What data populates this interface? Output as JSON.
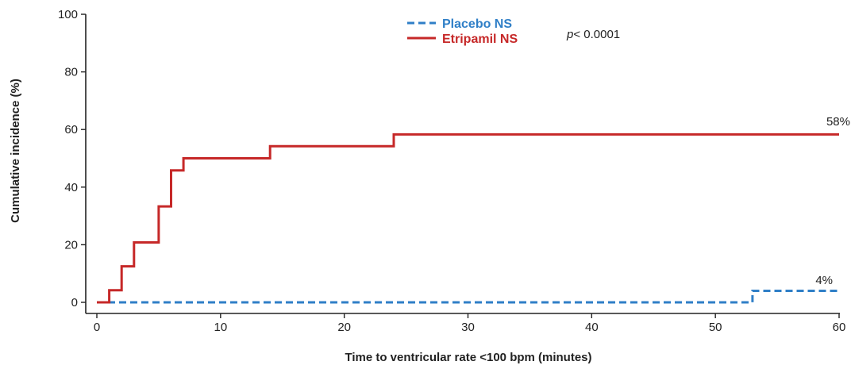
{
  "chart_data": {
    "type": "line",
    "step": true,
    "xlabel": "Time to ventricular rate <100 bpm (minutes)",
    "ylabel": "Cumulative incidence (%)",
    "xlim": [
      0,
      60
    ],
    "ylim": [
      0,
      100
    ],
    "xticks": [
      0,
      10,
      20,
      30,
      40,
      50,
      60
    ],
    "yticks": [
      0,
      20,
      40,
      60,
      80,
      100
    ],
    "grid": false,
    "legend_position": "top-center",
    "annotation": {
      "italic": "p",
      "rest": "< 0.0001"
    },
    "series": [
      {
        "name": "Placebo NS",
        "color": "#2f7fc7",
        "dash": "dashed",
        "end_label": "4%",
        "x": [
          0,
          53,
          60
        ],
        "y": [
          0,
          4,
          4
        ]
      },
      {
        "name": "Etripamil NS",
        "color": "#c62828",
        "dash": "solid",
        "end_label": "58%",
        "x": [
          0,
          1,
          2,
          3,
          5,
          6,
          7,
          14,
          24,
          60
        ],
        "y": [
          0,
          4.2,
          12.5,
          20.8,
          33.3,
          45.8,
          50,
          54.2,
          58.3,
          58.3
        ]
      }
    ]
  }
}
